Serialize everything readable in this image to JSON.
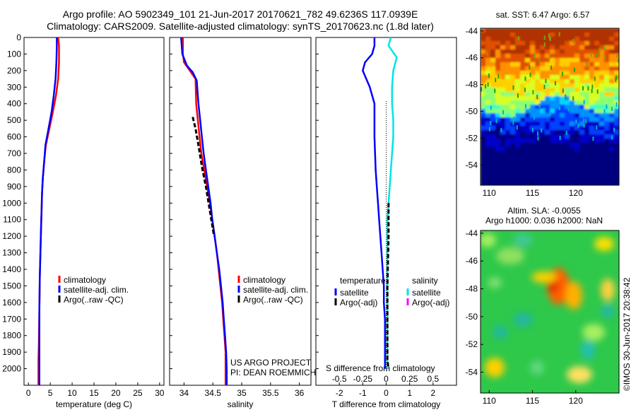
{
  "header": {
    "title_line1": "Argo profile: AO 5902349_101 21-Jun-2017 20170621_782 49.6236S 117.0939E",
    "title_line2": "Climatology: CARS2009. Satellite-adjusted climatology: synTS_20170623.nc (1.8d later)"
  },
  "credit": "US ARGO PROJECT",
  "pi": "PI: DEAN ROEMMICH",
  "stamp": "©IMOS 30-Jun-2017 20:38:42",
  "colors": {
    "climatology": "#ff0000",
    "satellite": "#0000ff",
    "argo": "#000000",
    "salinity_satellite": "#00e5e5",
    "salinity_argo": "#ff00ff"
  },
  "chart_data": [
    {
      "type": "line",
      "name": "temperature_profile",
      "xlabel": "temperature (deg C)",
      "xlim": [
        -1,
        31
      ],
      "ylim": [
        0,
        2100
      ],
      "y_inverted": true,
      "xticks": [
        0,
        5,
        10,
        15,
        20,
        25,
        30
      ],
      "yticks": [
        0,
        100,
        200,
        300,
        400,
        500,
        600,
        700,
        800,
        900,
        1000,
        1100,
        1200,
        1300,
        1400,
        1500,
        1600,
        1700,
        1800,
        1900,
        2000
      ],
      "legend": [
        "climatology",
        "satellite-adj. clim.",
        "Argo(..raw -QC)"
      ],
      "legend_position": "bottom-center",
      "series": [
        {
          "name": "climatology",
          "x": [
            6.8,
            7.0,
            7.0,
            6.8,
            6.3,
            5.6,
            4.8,
            4.0,
            3.6,
            3.3,
            3.1,
            3.0,
            2.9,
            2.8,
            2.7,
            2.6,
            2.55,
            2.5,
            2.45,
            2.4,
            2.35,
            2.3,
            2.3,
            2.3,
            2.3
          ],
          "y": [
            0,
            50,
            150,
            250,
            350,
            450,
            550,
            650,
            750,
            850,
            950,
            1050,
            1150,
            1250,
            1350,
            1450,
            1550,
            1650,
            1750,
            1850,
            1900,
            1950,
            2000,
            2050,
            2100
          ]
        },
        {
          "name": "satellite-adj. clim.",
          "x": [
            6.5,
            6.5,
            6.4,
            6.2,
            5.8,
            5.3,
            4.6,
            3.9,
            3.6,
            3.3,
            3.1,
            3.0,
            2.9,
            2.8,
            2.7,
            2.6,
            2.55,
            2.5,
            2.5,
            2.5,
            2.5,
            2.5,
            2.5,
            2.5
          ],
          "y": [
            0,
            50,
            150,
            250,
            350,
            450,
            550,
            650,
            750,
            850,
            950,
            1050,
            1150,
            1250,
            1350,
            1450,
            1550,
            1650,
            1750,
            1850,
            1950,
            2000,
            2050,
            2100
          ]
        }
      ]
    },
    {
      "type": "line",
      "name": "salinity_profile",
      "xlabel": "salinity",
      "xlim": [
        33.75,
        36.2
      ],
      "ylim": [
        0,
        2100
      ],
      "y_inverted": true,
      "xticks": [
        34,
        34.5,
        35,
        35.5,
        36
      ],
      "legend": [
        "climatology",
        "satellite-adj. clim.",
        "Argo(..raw -QC)"
      ],
      "legend_position": "bottom-center",
      "series": [
        {
          "name": "climatology",
          "x": [
            33.98,
            33.98,
            34.0,
            34.1,
            34.2,
            34.21,
            34.24,
            34.27,
            34.3,
            34.35,
            34.4,
            34.45,
            34.49,
            34.53,
            34.57,
            34.6,
            34.63,
            34.66,
            34.68,
            34.7,
            34.72,
            34.72,
            34.72
          ],
          "y": [
            0,
            100,
            150,
            200,
            250,
            400,
            500,
            600,
            700,
            800,
            900,
            1000,
            1100,
            1200,
            1300,
            1400,
            1500,
            1600,
            1700,
            1800,
            1900,
            2000,
            2100
          ]
        },
        {
          "name": "satellite-adj. clim.",
          "x": [
            33.95,
            33.97,
            34.05,
            34.15,
            34.22,
            34.25,
            34.28,
            34.31,
            34.34,
            34.38,
            34.42,
            34.46,
            34.49,
            34.53,
            34.57,
            34.61,
            34.64,
            34.67,
            34.69,
            34.71,
            34.73,
            34.74,
            34.74
          ],
          "y": [
            0,
            100,
            170,
            210,
            260,
            400,
            500,
            600,
            700,
            800,
            900,
            1000,
            1100,
            1200,
            1300,
            1400,
            1500,
            1600,
            1700,
            1800,
            1900,
            2000,
            2100
          ]
        },
        {
          "name": "Argo(..raw -QC)",
          "x": [
            34.15,
            34.2,
            34.25,
            34.31,
            34.38,
            34.45,
            34.52
          ],
          "y": [
            480,
            550,
            650,
            780,
            900,
            1050,
            1200
          ]
        }
      ]
    },
    {
      "type": "line",
      "name": "difference_profile",
      "xlabel": "T difference from climatology",
      "top_axis_label": "S difference from climatology",
      "xlim": [
        -3,
        3
      ],
      "ylim": [
        0,
        2100
      ],
      "y_inverted": true,
      "xticks": [
        -2,
        -1,
        0,
        1,
        2
      ],
      "sticks_labels": [
        "-0.5",
        "-0.25",
        "0",
        "0.25",
        "0.5"
      ],
      "legend_headers": [
        "temperature",
        "salinity"
      ],
      "legend_temperature": [
        "satellite",
        "Argo(-adj)"
      ],
      "legend_salinity": [
        "satellite",
        "Argo(-adj)"
      ],
      "legend_position": "bottom-center",
      "series": [
        {
          "name": "temperature satellite",
          "x": [
            -0.5,
            -0.5,
            -0.6,
            -0.9,
            -1.0,
            -0.7,
            -0.5,
            -0.5,
            -0.45,
            -0.4,
            -0.35,
            -0.3,
            -0.25,
            -0.2,
            -0.15,
            -0.1,
            -0.1,
            -0.05,
            -0.05,
            -0.05,
            -0.05
          ],
          "y": [
            0,
            50,
            100,
            150,
            200,
            300,
            400,
            600,
            800,
            900,
            1000,
            1100,
            1200,
            1300,
            1400,
            1500,
            1600,
            1700,
            1800,
            1900,
            2000
          ]
        },
        {
          "name": "salinity satellite",
          "x": [
            0.2,
            0.1,
            0.45,
            0.3,
            0.25,
            0.25,
            0.3,
            0.3,
            0.25,
            0.2,
            0.15,
            0.1,
            0.05,
            0.05,
            0.05,
            0.05,
            0.05,
            0.05,
            0.05,
            0.05
          ],
          "y": [
            0,
            50,
            120,
            200,
            300,
            400,
            500,
            600,
            700,
            800,
            900,
            1000,
            1100,
            1200,
            1400,
            1500,
            1600,
            1800,
            1900,
            2000
          ]
        },
        {
          "name": "Argo(-adj)",
          "x": [
            0.1,
            0.1,
            0.1,
            0.05,
            0.05,
            0.05,
            0.1
          ],
          "y": [
            1000,
            1100,
            1200,
            1500,
            1800,
            1950,
            2000
          ]
        }
      ]
    },
    {
      "type": "heatmap",
      "name": "sst_map",
      "title": "sat. SST: 6.47 Argo: 6.57",
      "xlim": [
        109,
        125
      ],
      "ylim": [
        -55.5,
        -43.8
      ],
      "xticks": [
        110,
        115,
        120
      ],
      "yticks": [
        -44,
        -46,
        -48,
        -50,
        -52,
        -54
      ],
      "colormap": "jet"
    },
    {
      "type": "heatmap",
      "name": "sla_map",
      "title_line1": "Altim. SLA: -0.0055",
      "title_line2": "Argo h1000: 0.036 h2000: NaN",
      "xlim": [
        109,
        125
      ],
      "ylim": [
        -55.5,
        -43.8
      ],
      "xticks": [
        110,
        115,
        120
      ],
      "yticks": [
        -44,
        -46,
        -48,
        -50,
        -52,
        -54
      ],
      "colormap": "jet"
    }
  ]
}
